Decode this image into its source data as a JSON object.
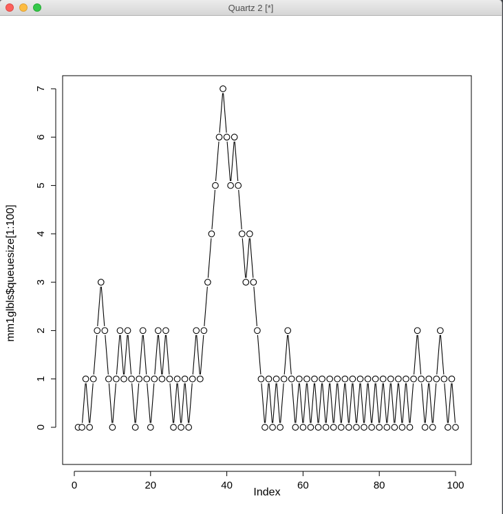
{
  "window": {
    "title": "Quartz 2 [*]"
  },
  "chart_data": {
    "type": "line",
    "style": "points-and-lines (type='b')",
    "marker": "open-circle",
    "xlabel": "Index",
    "ylabel": "mm1glbls$queuesize[1:100]",
    "xlim": [
      1,
      100
    ],
    "ylim": [
      0,
      7
    ],
    "xticks": [
      0,
      20,
      40,
      60,
      80,
      100
    ],
    "yticks": [
      0,
      1,
      2,
      3,
      4,
      5,
      6,
      7
    ],
    "x": [
      1,
      2,
      3,
      4,
      5,
      6,
      7,
      8,
      9,
      10,
      11,
      12,
      13,
      14,
      15,
      16,
      17,
      18,
      19,
      20,
      21,
      22,
      23,
      24,
      25,
      26,
      27,
      28,
      29,
      30,
      31,
      32,
      33,
      34,
      35,
      36,
      37,
      38,
      39,
      40,
      41,
      42,
      43,
      44,
      45,
      46,
      47,
      48,
      49,
      50,
      51,
      52,
      53,
      54,
      55,
      56,
      57,
      58,
      59,
      60,
      61,
      62,
      63,
      64,
      65,
      66,
      67,
      68,
      69,
      70,
      71,
      72,
      73,
      74,
      75,
      76,
      77,
      78,
      79,
      80,
      81,
      82,
      83,
      84,
      85,
      86,
      87,
      88,
      89,
      90,
      91,
      92,
      93,
      94,
      95,
      96,
      97,
      98,
      99,
      100
    ],
    "values": [
      0,
      0,
      1,
      0,
      1,
      2,
      3,
      2,
      1,
      0,
      1,
      2,
      1,
      2,
      1,
      0,
      1,
      2,
      1,
      0,
      1,
      2,
      1,
      2,
      1,
      0,
      1,
      0,
      1,
      0,
      1,
      2,
      1,
      2,
      3,
      4,
      5,
      6,
      7,
      6,
      5,
      6,
      5,
      4,
      3,
      4,
      3,
      2,
      1,
      0,
      1,
      0,
      1,
      0,
      1,
      2,
      1,
      0,
      1,
      0,
      1,
      0,
      1,
      0,
      1,
      0,
      1,
      0,
      1,
      0,
      1,
      0,
      1,
      0,
      1,
      0,
      1,
      0,
      1,
      0,
      1,
      0,
      1,
      0,
      1,
      0,
      1,
      0,
      1,
      2,
      1,
      0,
      1,
      0,
      1,
      2,
      1,
      0,
      1,
      0
    ]
  }
}
